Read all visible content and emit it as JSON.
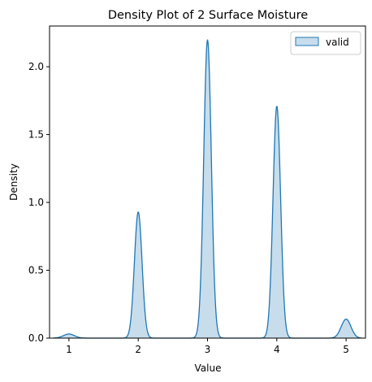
{
  "chart_data": {
    "type": "area",
    "title": "Density Plot of 2 Surface Moisture",
    "xlabel": "Value",
    "ylabel": "Density",
    "xlim": [
      0.72,
      5.28
    ],
    "ylim": [
      0,
      2.3
    ],
    "xticks": [
      1,
      2,
      3,
      4,
      5
    ],
    "yticks": [
      0.0,
      0.5,
      1.0,
      1.5,
      2.0
    ],
    "grid": false,
    "legend": {
      "position": "top-right",
      "entries": [
        "valid"
      ]
    },
    "series": [
      {
        "name": "valid",
        "color": "#1f77b4",
        "fill_color": "#1f77b4",
        "fill_alpha": 0.25,
        "x_range": [
          0.77,
          5.23
        ],
        "peaks": [
          {
            "x": 1,
            "y": 0.03,
            "sigma": 0.08
          },
          {
            "x": 2,
            "y": 0.93,
            "sigma": 0.055
          },
          {
            "x": 3,
            "y": 2.2,
            "sigma": 0.055
          },
          {
            "x": 4,
            "y": 1.71,
            "sigma": 0.055
          },
          {
            "x": 5,
            "y": 0.14,
            "sigma": 0.07
          }
        ]
      }
    ]
  }
}
